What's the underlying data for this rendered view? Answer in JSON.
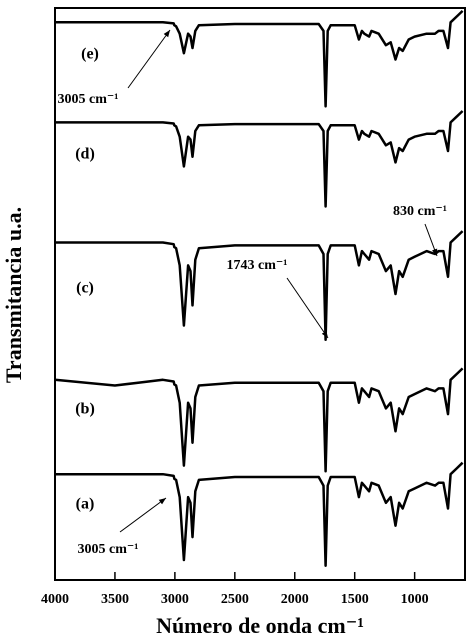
{
  "chart_data": {
    "type": "line",
    "xlabel": "Número de onda cm⁻¹",
    "ylabel": "Transmitancia u.a.",
    "xlim": [
      4000,
      580
    ],
    "ylim": [
      0,
      100
    ],
    "xticks": [
      4000,
      3500,
      3000,
      2500,
      2000,
      1500,
      1000
    ],
    "x": [
      4000,
      3500,
      3100,
      3010,
      3005,
      2990,
      2960,
      2925,
      2890,
      2870,
      2853,
      2830,
      2800,
      2500,
      2000,
      1800,
      1760,
      1743,
      1725,
      1700,
      1500,
      1465,
      1440,
      1420,
      1380,
      1360,
      1300,
      1240,
      1200,
      1160,
      1130,
      1100,
      1050,
      1000,
      900,
      830,
      800,
      760,
      722,
      700,
      650,
      600
    ],
    "series": [
      {
        "name": "(a)",
        "color": "#000000",
        "values": [
          18.5,
          18.5,
          18.5,
          18.2,
          17.7,
          17.5,
          14.5,
          3.5,
          14.5,
          13.5,
          7.5,
          15.5,
          17.5,
          18,
          18,
          18,
          16.5,
          2.5,
          16.5,
          18,
          18,
          14.5,
          17,
          16.5,
          15.5,
          17,
          16.5,
          13.5,
          14.5,
          9.5,
          13.5,
          12.5,
          15.5,
          16,
          17,
          16.5,
          17,
          17,
          12.5,
          18.5,
          19.5,
          20.5
        ]
      },
      {
        "name": "(b)",
        "color": "#000000",
        "values": [
          35,
          34,
          35,
          34.7,
          34.2,
          34,
          31,
          20,
          31,
          30,
          24,
          32,
          34,
          34.5,
          34.5,
          34.5,
          33,
          19,
          33,
          34.5,
          34.5,
          31,
          33.5,
          33,
          32,
          33.5,
          33,
          30,
          31,
          26,
          30,
          29,
          32,
          32.5,
          33.5,
          33,
          33.5,
          33.5,
          29,
          35,
          36,
          37
        ]
      },
      {
        "name": "(c)",
        "color": "#000000",
        "values": [
          59,
          59,
          59,
          58.7,
          58.2,
          58,
          55,
          44.5,
          55,
          54,
          48,
          56,
          58,
          58.5,
          58.5,
          58.5,
          57,
          42,
          57,
          58.5,
          58.5,
          55,
          57.5,
          57,
          56,
          57.5,
          57,
          54,
          55,
          50,
          54,
          53,
          56,
          56.5,
          57.5,
          57,
          57.5,
          57.5,
          53,
          59,
          60,
          61
        ]
      },
      {
        "name": "(d)",
        "color": "#000000",
        "values": [
          80,
          80,
          80,
          79.8,
          79.5,
          79.3,
          77.5,
          72.3,
          77.5,
          77,
          74,
          78.5,
          79.5,
          79.7,
          79.7,
          79.7,
          78.5,
          65.3,
          78.5,
          79.5,
          79.5,
          77,
          78.5,
          78,
          77.5,
          78.5,
          78,
          76,
          76.5,
          73,
          75.5,
          75,
          77,
          77.5,
          78,
          78,
          78.5,
          78.5,
          75,
          80,
          81,
          82
        ]
      },
      {
        "name": "(e)",
        "color": "#000000",
        "values": [
          97.5,
          97.5,
          97.5,
          97.3,
          97,
          96.8,
          95.5,
          92.1,
          95.5,
          95,
          93,
          96,
          97,
          97.2,
          97.2,
          97.2,
          96,
          82.8,
          96,
          97,
          97,
          94.5,
          96,
          95.5,
          95,
          96,
          95.5,
          93.5,
          94,
          91,
          93,
          92.5,
          94.5,
          95,
          95.5,
          95.5,
          96,
          96,
          93,
          97.5,
          98.5,
          99.5
        ]
      }
    ],
    "annotations": [
      "3005 cm⁻¹",
      "830 cm⁻¹",
      "1743 cm⁻¹",
      "3005 cm⁻¹"
    ]
  }
}
